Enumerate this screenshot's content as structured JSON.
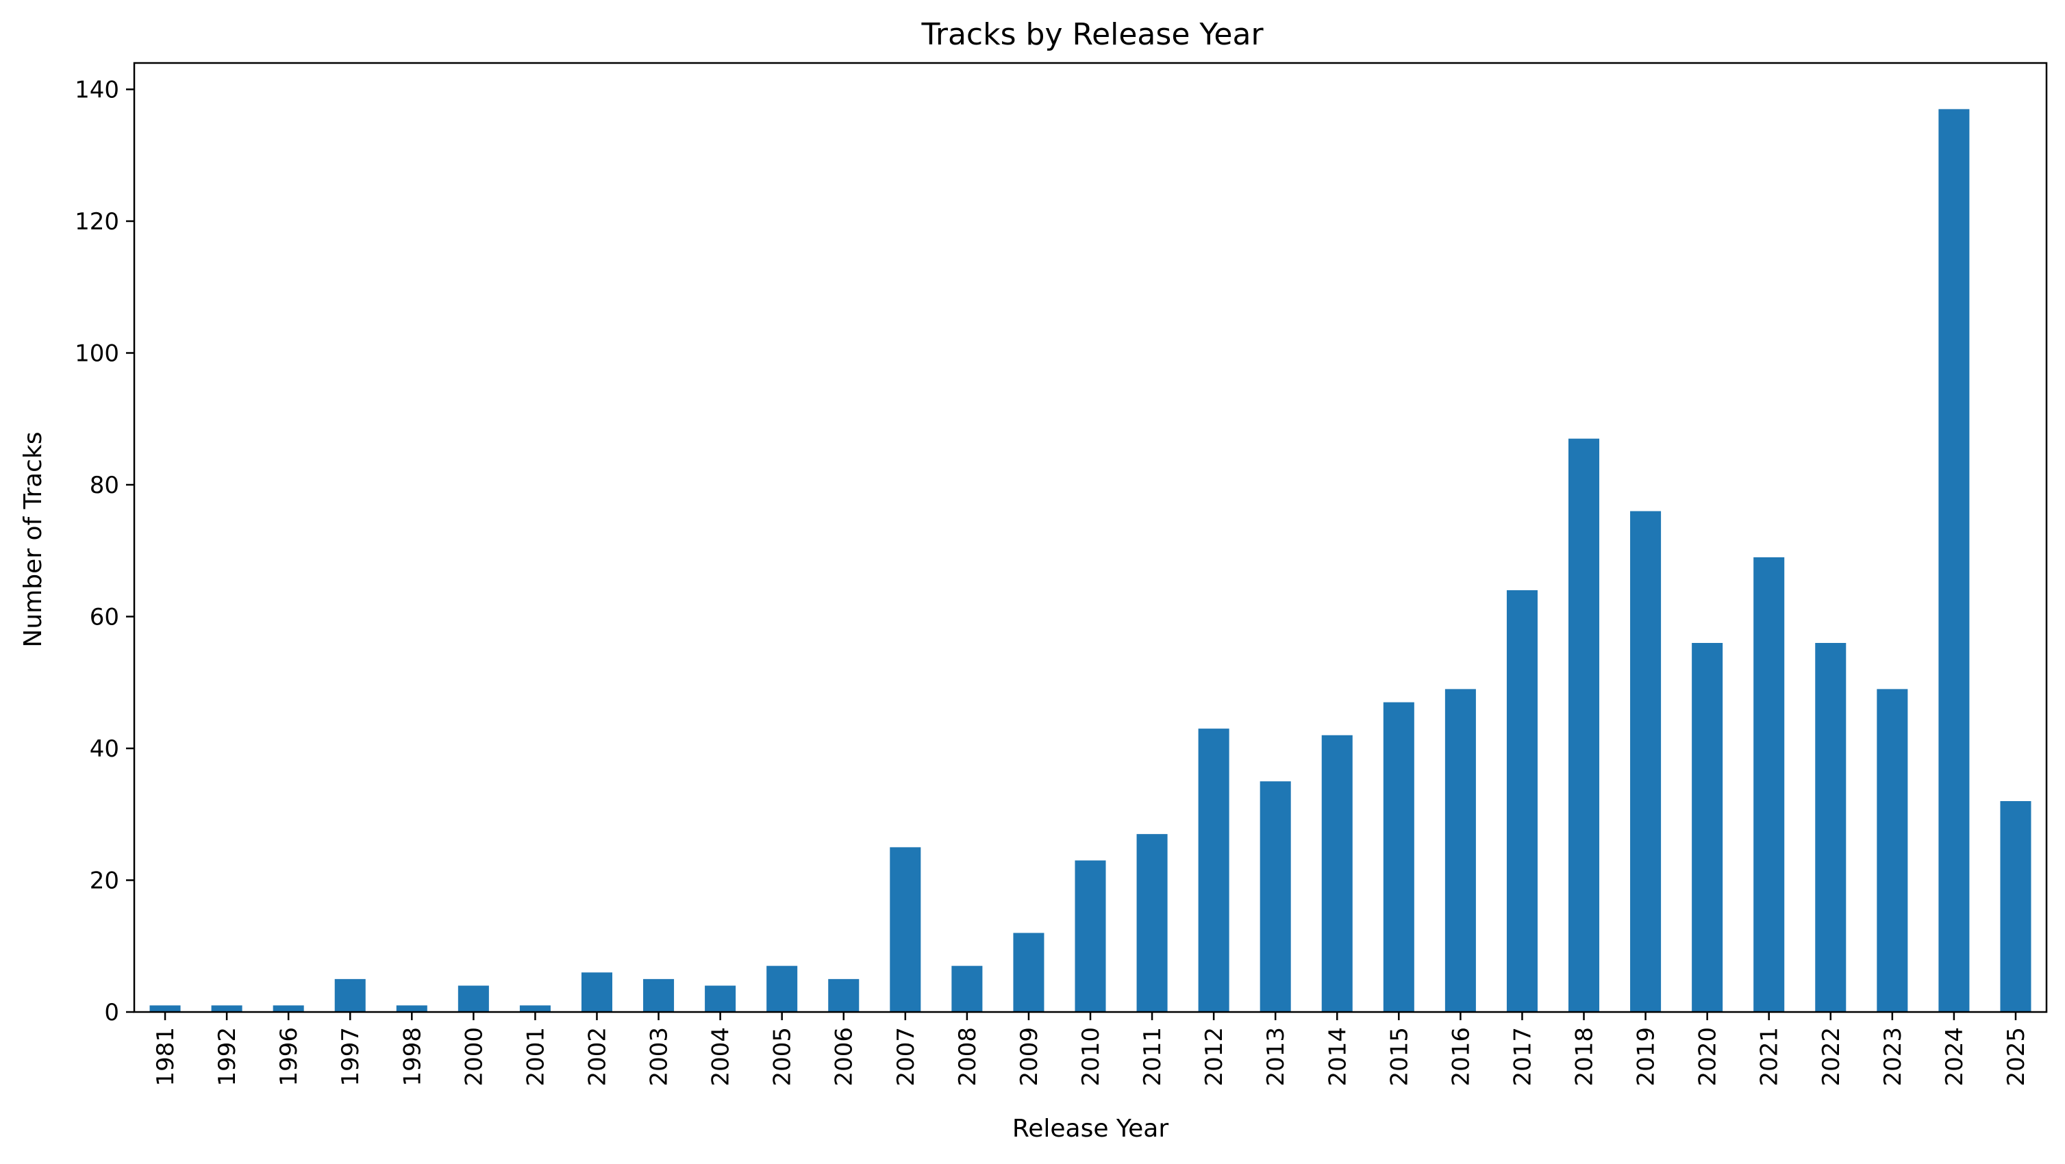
{
  "chart_data": {
    "type": "bar",
    "title": "Tracks by Release Year",
    "xlabel": "Release Year",
    "ylabel": "Number of Tracks",
    "ylim": [
      0,
      144
    ],
    "yticks": [
      0,
      20,
      40,
      60,
      80,
      100,
      120,
      140
    ],
    "categories": [
      "1981",
      "1992",
      "1996",
      "1997",
      "1998",
      "2000",
      "2001",
      "2002",
      "2003",
      "2004",
      "2005",
      "2006",
      "2007",
      "2008",
      "2009",
      "2010",
      "2011",
      "2012",
      "2013",
      "2014",
      "2015",
      "2016",
      "2017",
      "2018",
      "2019",
      "2020",
      "2021",
      "2022",
      "2023",
      "2024",
      "2025"
    ],
    "values": [
      1,
      1,
      1,
      5,
      1,
      4,
      1,
      6,
      5,
      4,
      7,
      5,
      25,
      7,
      12,
      23,
      27,
      43,
      35,
      42,
      47,
      49,
      64,
      87,
      76,
      56,
      69,
      56,
      49,
      137,
      32
    ],
    "bar_color": "#1f77b4",
    "grid": false,
    "legend": "none"
  }
}
